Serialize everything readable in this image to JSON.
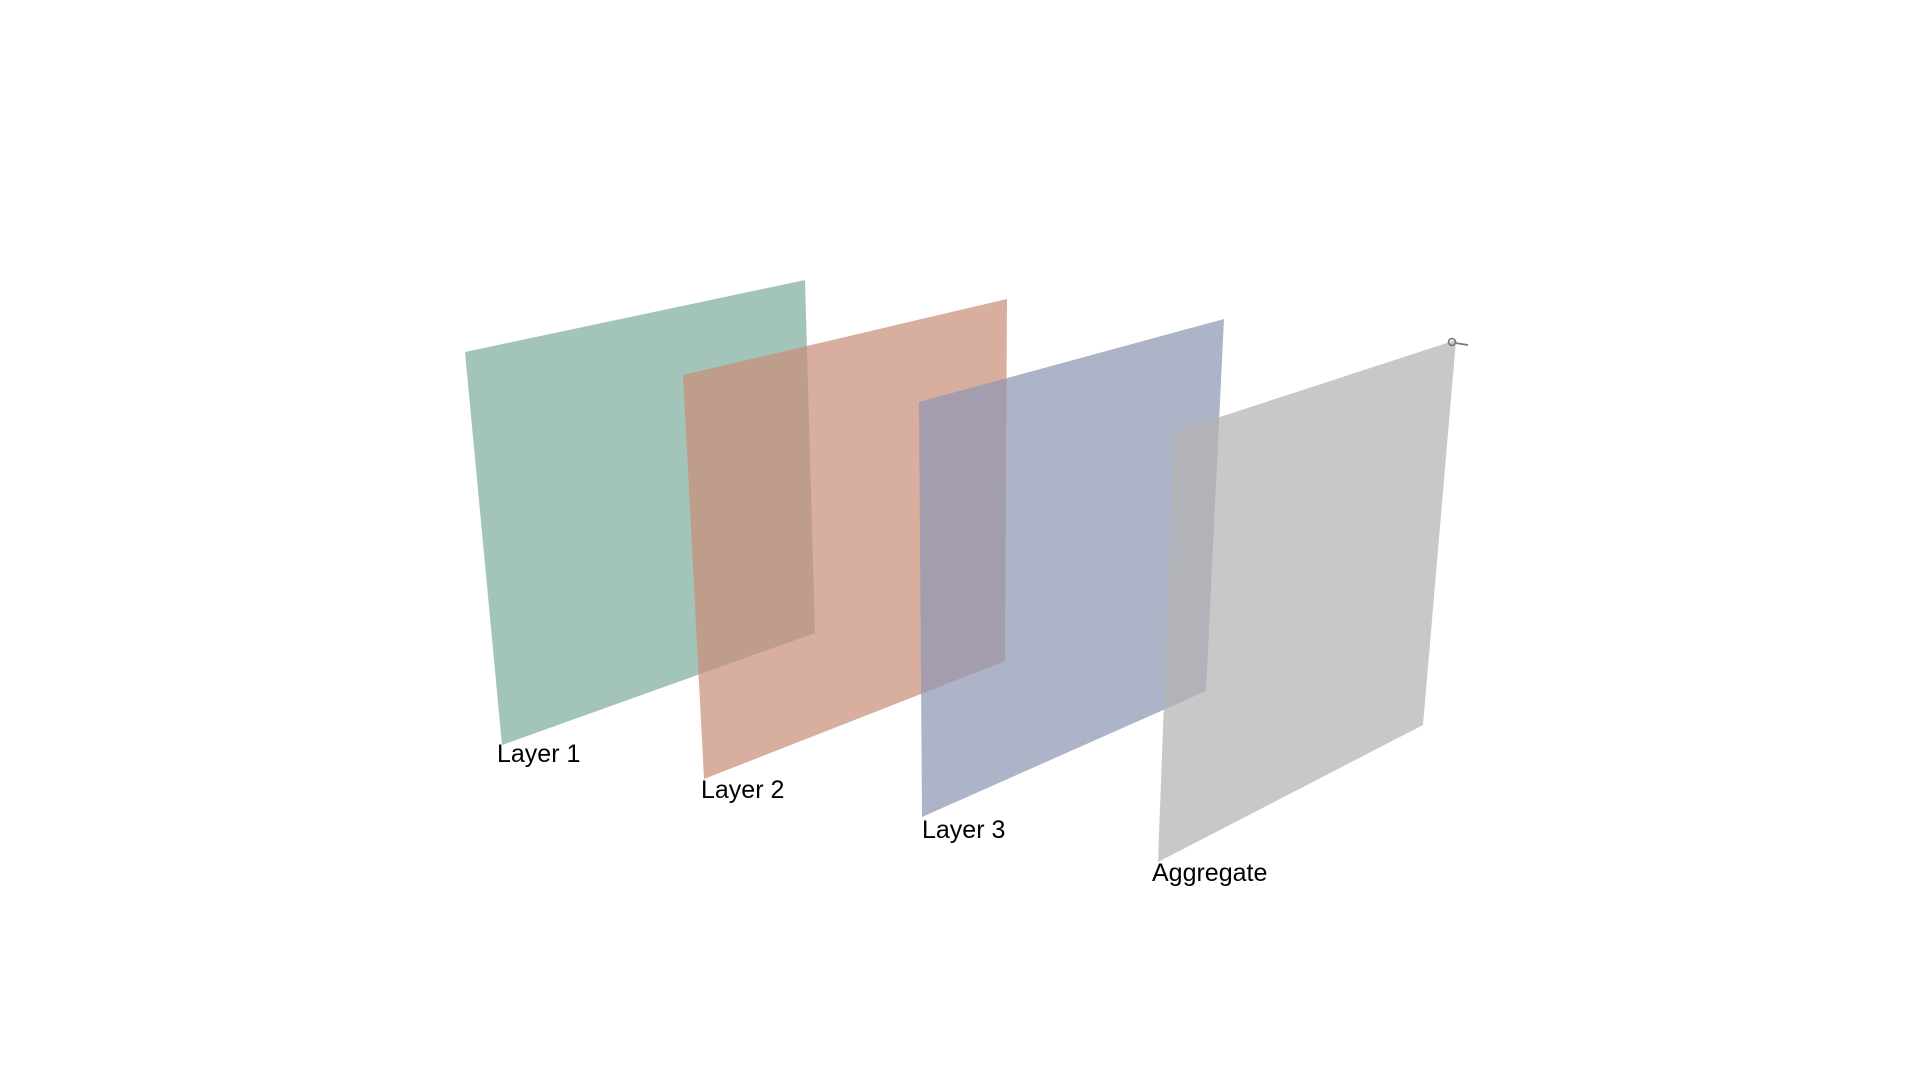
{
  "layers": [
    {
      "label": "Layer 1",
      "color": "#7fae9e"
    },
    {
      "label": "Layer 2",
      "color": "#c98f78"
    },
    {
      "label": "Layer 3",
      "color": "#8f97b3"
    },
    {
      "label": "Aggregate",
      "color": "#b3b3b3"
    }
  ],
  "layer_opacity": 0.72,
  "marker_icon": "node-marker-icon"
}
